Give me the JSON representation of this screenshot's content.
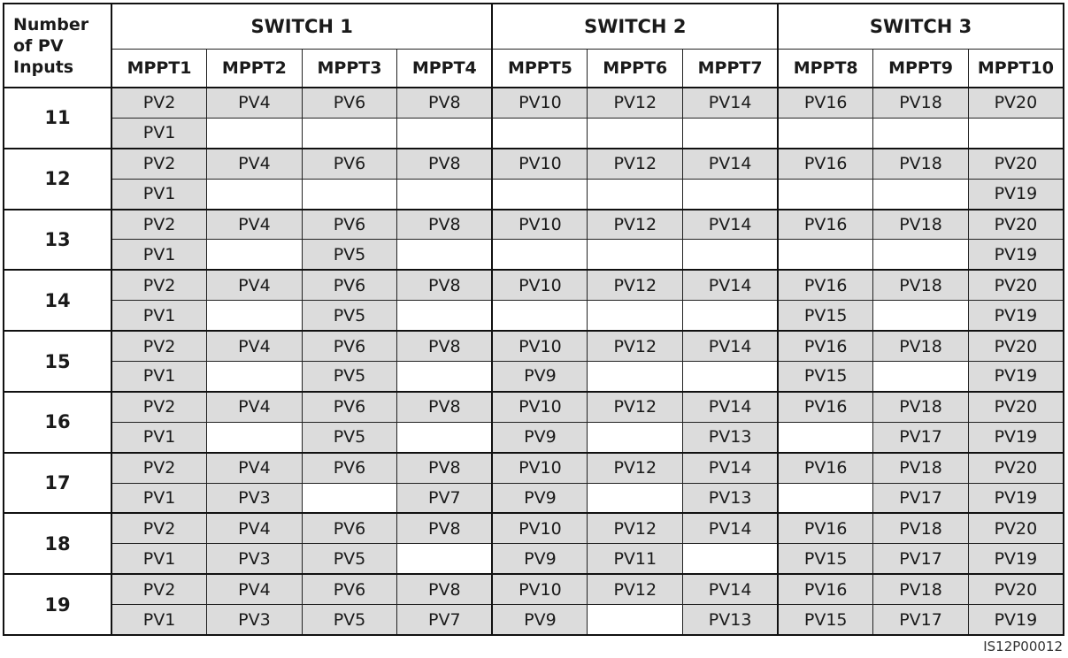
{
  "header": {
    "first_col": "Number of PV Inputs",
    "switches": [
      "SWITCH 1",
      "SWITCH 2",
      "SWITCH 3"
    ],
    "mppts": [
      "MPPT1",
      "MPPT2",
      "MPPT3",
      "MPPT4",
      "MPPT5",
      "MPPT6",
      "MPPT7",
      "MPPT8",
      "MPPT9",
      "MPPT10"
    ]
  },
  "groups": [
    {
      "inputs": "11",
      "top": [
        "PV2",
        "PV4",
        "PV6",
        "PV8",
        "PV10",
        "PV12",
        "PV14",
        "PV16",
        "PV18",
        "PV20"
      ],
      "bottom": [
        "PV1",
        "",
        "",
        "",
        "",
        "",
        "",
        "",
        "",
        ""
      ]
    },
    {
      "inputs": "12",
      "top": [
        "PV2",
        "PV4",
        "PV6",
        "PV8",
        "PV10",
        "PV12",
        "PV14",
        "PV16",
        "PV18",
        "PV20"
      ],
      "bottom": [
        "PV1",
        "",
        "",
        "",
        "",
        "",
        "",
        "",
        "",
        "PV19"
      ]
    },
    {
      "inputs": "13",
      "top": [
        "PV2",
        "PV4",
        "PV6",
        "PV8",
        "PV10",
        "PV12",
        "PV14",
        "PV16",
        "PV18",
        "PV20"
      ],
      "bottom": [
        "PV1",
        "",
        "PV5",
        "",
        "",
        "",
        "",
        "",
        "",
        "PV19"
      ]
    },
    {
      "inputs": "14",
      "top": [
        "PV2",
        "PV4",
        "PV6",
        "PV8",
        "PV10",
        "PV12",
        "PV14",
        "PV16",
        "PV18",
        "PV20"
      ],
      "bottom": [
        "PV1",
        "",
        "PV5",
        "",
        "",
        "",
        "",
        "PV15",
        "",
        "PV19"
      ]
    },
    {
      "inputs": "15",
      "top": [
        "PV2",
        "PV4",
        "PV6",
        "PV8",
        "PV10",
        "PV12",
        "PV14",
        "PV16",
        "PV18",
        "PV20"
      ],
      "bottom": [
        "PV1",
        "",
        "PV5",
        "",
        "PV9",
        "",
        "",
        "PV15",
        "",
        "PV19"
      ]
    },
    {
      "inputs": "16",
      "top": [
        "PV2",
        "PV4",
        "PV6",
        "PV8",
        "PV10",
        "PV12",
        "PV14",
        "PV16",
        "PV18",
        "PV20"
      ],
      "bottom": [
        "PV1",
        "",
        "PV5",
        "",
        "PV9",
        "",
        "PV13",
        "",
        "PV17",
        "PV19"
      ]
    },
    {
      "inputs": "17",
      "top": [
        "PV2",
        "PV4",
        "PV6",
        "PV8",
        "PV10",
        "PV12",
        "PV14",
        "PV16",
        "PV18",
        "PV20"
      ],
      "bottom": [
        "PV1",
        "PV3",
        "",
        "PV7",
        "PV9",
        "",
        "PV13",
        "",
        "PV17",
        "PV19"
      ]
    },
    {
      "inputs": "18",
      "top": [
        "PV2",
        "PV4",
        "PV6",
        "PV8",
        "PV10",
        "PV12",
        "PV14",
        "PV16",
        "PV18",
        "PV20"
      ],
      "bottom": [
        "PV1",
        "PV3",
        "PV5",
        "",
        "PV9",
        "PV11",
        "",
        "PV15",
        "PV17",
        "PV19"
      ]
    },
    {
      "inputs": "19",
      "top": [
        "PV2",
        "PV4",
        "PV6",
        "PV8",
        "PV10",
        "PV12",
        "PV14",
        "PV16",
        "PV18",
        "PV20"
      ],
      "bottom": [
        "PV1",
        "PV3",
        "PV5",
        "PV7",
        "PV9",
        "",
        "PV13",
        "PV15",
        "PV17",
        "PV19"
      ]
    }
  ],
  "figure_id": "IS12P00012",
  "colors": {
    "filled_cell": "#dcdcdc",
    "empty_cell": "#ffffff",
    "border": "#111111"
  }
}
